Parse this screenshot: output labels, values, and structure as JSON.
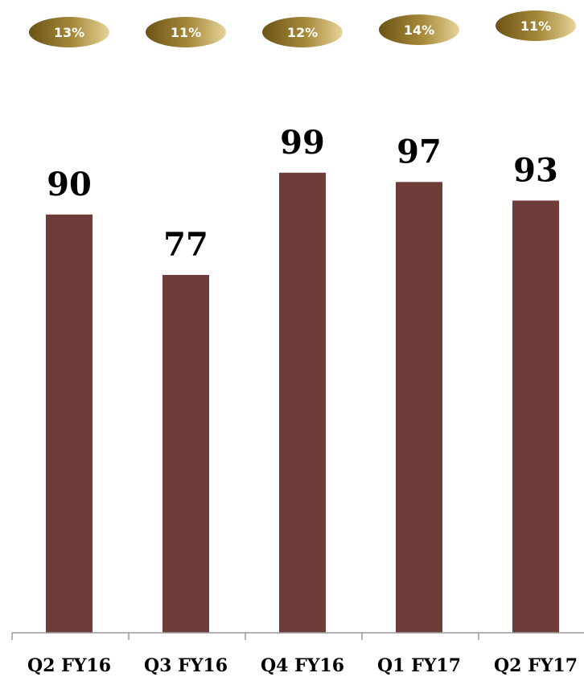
{
  "colors": {
    "bar": "#6e3d3a",
    "pill_dark": "#6b5414",
    "pill_light": "#e6d49a",
    "axis": "#9a9a9a"
  },
  "chart_data": {
    "type": "bar",
    "categories": [
      "Q2 FY16",
      "Q3 FY16",
      "Q4 FY16",
      "Q1 FY17",
      "Q2 FY17"
    ],
    "values": [
      90,
      77,
      99,
      97,
      93
    ],
    "value_labels": [
      "90",
      "77",
      "99",
      "97",
      "93"
    ],
    "growth_labels": [
      "13%",
      "11%",
      "12%",
      "14%",
      "11%"
    ],
    "title": "",
    "xlabel": "",
    "ylabel": "",
    "ylim": [
      0,
      100
    ],
    "grid": false,
    "legend": "none"
  }
}
